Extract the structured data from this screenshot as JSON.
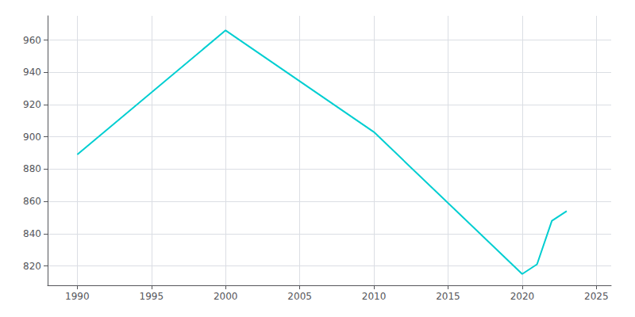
{
  "chart_data": {
    "type": "line",
    "x": [
      1990,
      2000,
      2010,
      2020,
      2021,
      2022,
      2023
    ],
    "values": [
      889,
      966,
      903,
      815,
      821,
      848,
      854
    ],
    "color": "#00CED1",
    "xlim": [
      1988,
      2026
    ],
    "ylim": [
      808,
      975
    ],
    "xticks": [
      1990,
      1995,
      2000,
      2005,
      2010,
      2015,
      2020,
      2025
    ],
    "yticks": [
      820,
      840,
      860,
      880,
      900,
      920,
      940,
      960
    ],
    "grid": true
  }
}
